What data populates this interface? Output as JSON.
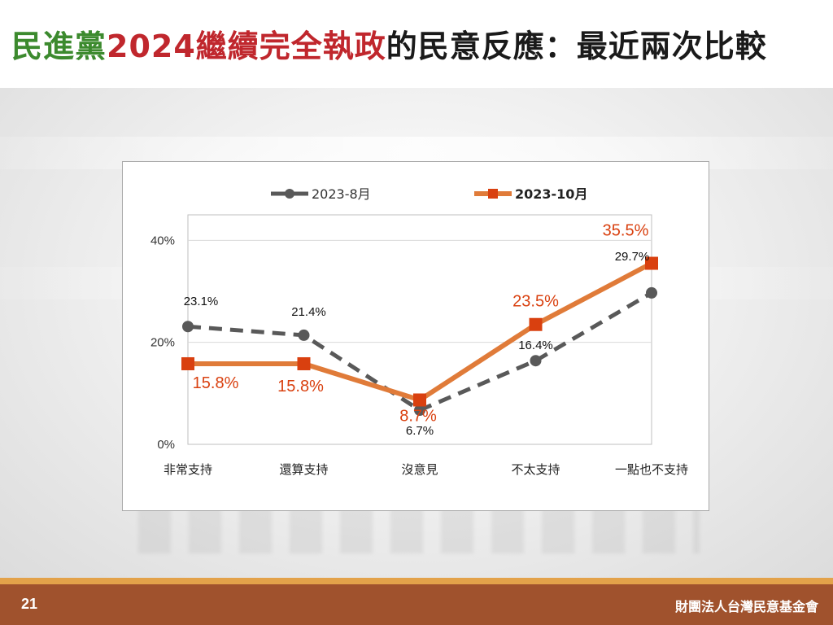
{
  "title": {
    "part1": "民進黨",
    "part2": "2024繼續完全執政",
    "part3": "的民意反應：最近兩次比較"
  },
  "footer": {
    "page_number": "21",
    "organization": "財團法人台灣民意基金會"
  },
  "colors": {
    "title_green": "#3c8a2e",
    "title_red": "#c0272d",
    "series_aug": "#595959",
    "series_oct_line": "#e07b39",
    "series_oct_marker": "#d9400f",
    "footer_bg": "#a0522d",
    "footer_stripe": "#e3a24a"
  },
  "chart_data": {
    "type": "line",
    "categories": [
      "非常支持",
      "還算支持",
      "沒意見",
      "不太支持",
      "一點也不支持"
    ],
    "y_ticks": [
      "0%",
      "20%",
      "40%"
    ],
    "ylim": [
      0,
      40
    ],
    "grid": true,
    "legend_position": "top",
    "series": [
      {
        "name": "2023-8月",
        "values": [
          23.1,
          21.4,
          6.7,
          16.4,
          29.7
        ],
        "labels": [
          "23.1%",
          "21.4%",
          "6.7%",
          "16.4%",
          "29.7%"
        ],
        "style": "dashed",
        "marker": "circle"
      },
      {
        "name": "2023-10月",
        "values": [
          15.8,
          15.8,
          8.7,
          23.5,
          35.5
        ],
        "labels": [
          "15.8%",
          "15.8%",
          "8.7%",
          "23.5%",
          "35.5%"
        ],
        "style": "solid",
        "marker": "square"
      }
    ]
  }
}
